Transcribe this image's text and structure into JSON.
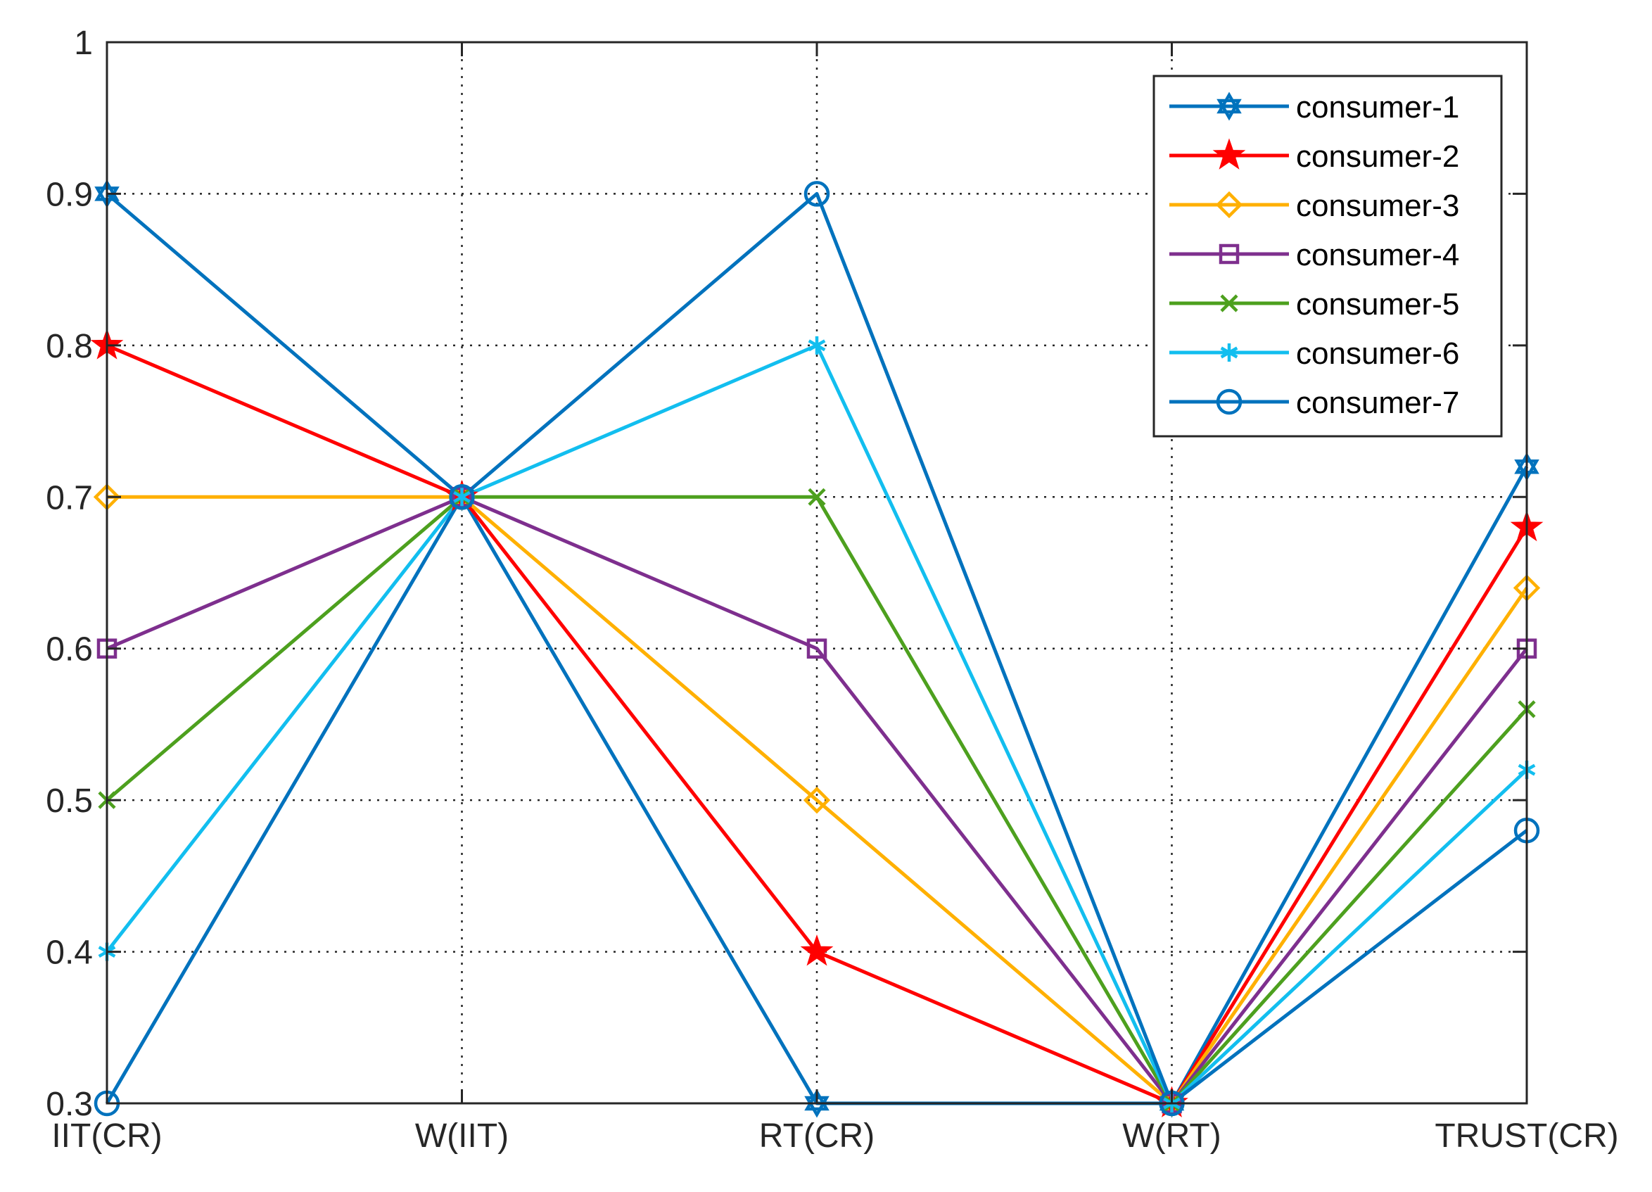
{
  "chart_data": {
    "type": "line",
    "title": "",
    "xlabel": "",
    "ylabel": "",
    "categories": [
      "IIT(CR)",
      "W(IIT)",
      "RT(CR)",
      "W(RT)",
      "TRUST(CR)"
    ],
    "ylim": [
      0.3,
      1
    ],
    "yticks": [
      "0.3",
      "0.4",
      "0.5",
      "0.6",
      "0.7",
      "0.8",
      "0.9",
      "1"
    ],
    "grid": true,
    "legend_position": "top-right",
    "series": [
      {
        "name": "consumer-1",
        "color": "#0072BD",
        "marker": "hexagram",
        "values": [
          0.9,
          0.7,
          0.3,
          0.3,
          0.72
        ]
      },
      {
        "name": "consumer-2",
        "color": "#FF0000",
        "marker": "pentagram",
        "values": [
          0.8,
          0.7,
          0.4,
          0.3,
          0.68
        ]
      },
      {
        "name": "consumer-3",
        "color": "#FFB000",
        "marker": "diamond",
        "values": [
          0.7,
          0.7,
          0.5,
          0.3,
          0.64
        ]
      },
      {
        "name": "consumer-4",
        "color": "#7E2F8E",
        "marker": "square",
        "values": [
          0.6,
          0.7,
          0.6,
          0.3,
          0.6
        ]
      },
      {
        "name": "consumer-5",
        "color": "#4DA01E",
        "marker": "x",
        "values": [
          0.5,
          0.7,
          0.7,
          0.3,
          0.56
        ]
      },
      {
        "name": "consumer-6",
        "color": "#12BEEF",
        "marker": "asterisk",
        "values": [
          0.4,
          0.7,
          0.8,
          0.3,
          0.52
        ]
      },
      {
        "name": "consumer-7",
        "color": "#0072BD",
        "marker": "circle",
        "values": [
          0.3,
          0.7,
          0.9,
          0.3,
          0.48
        ]
      }
    ]
  }
}
